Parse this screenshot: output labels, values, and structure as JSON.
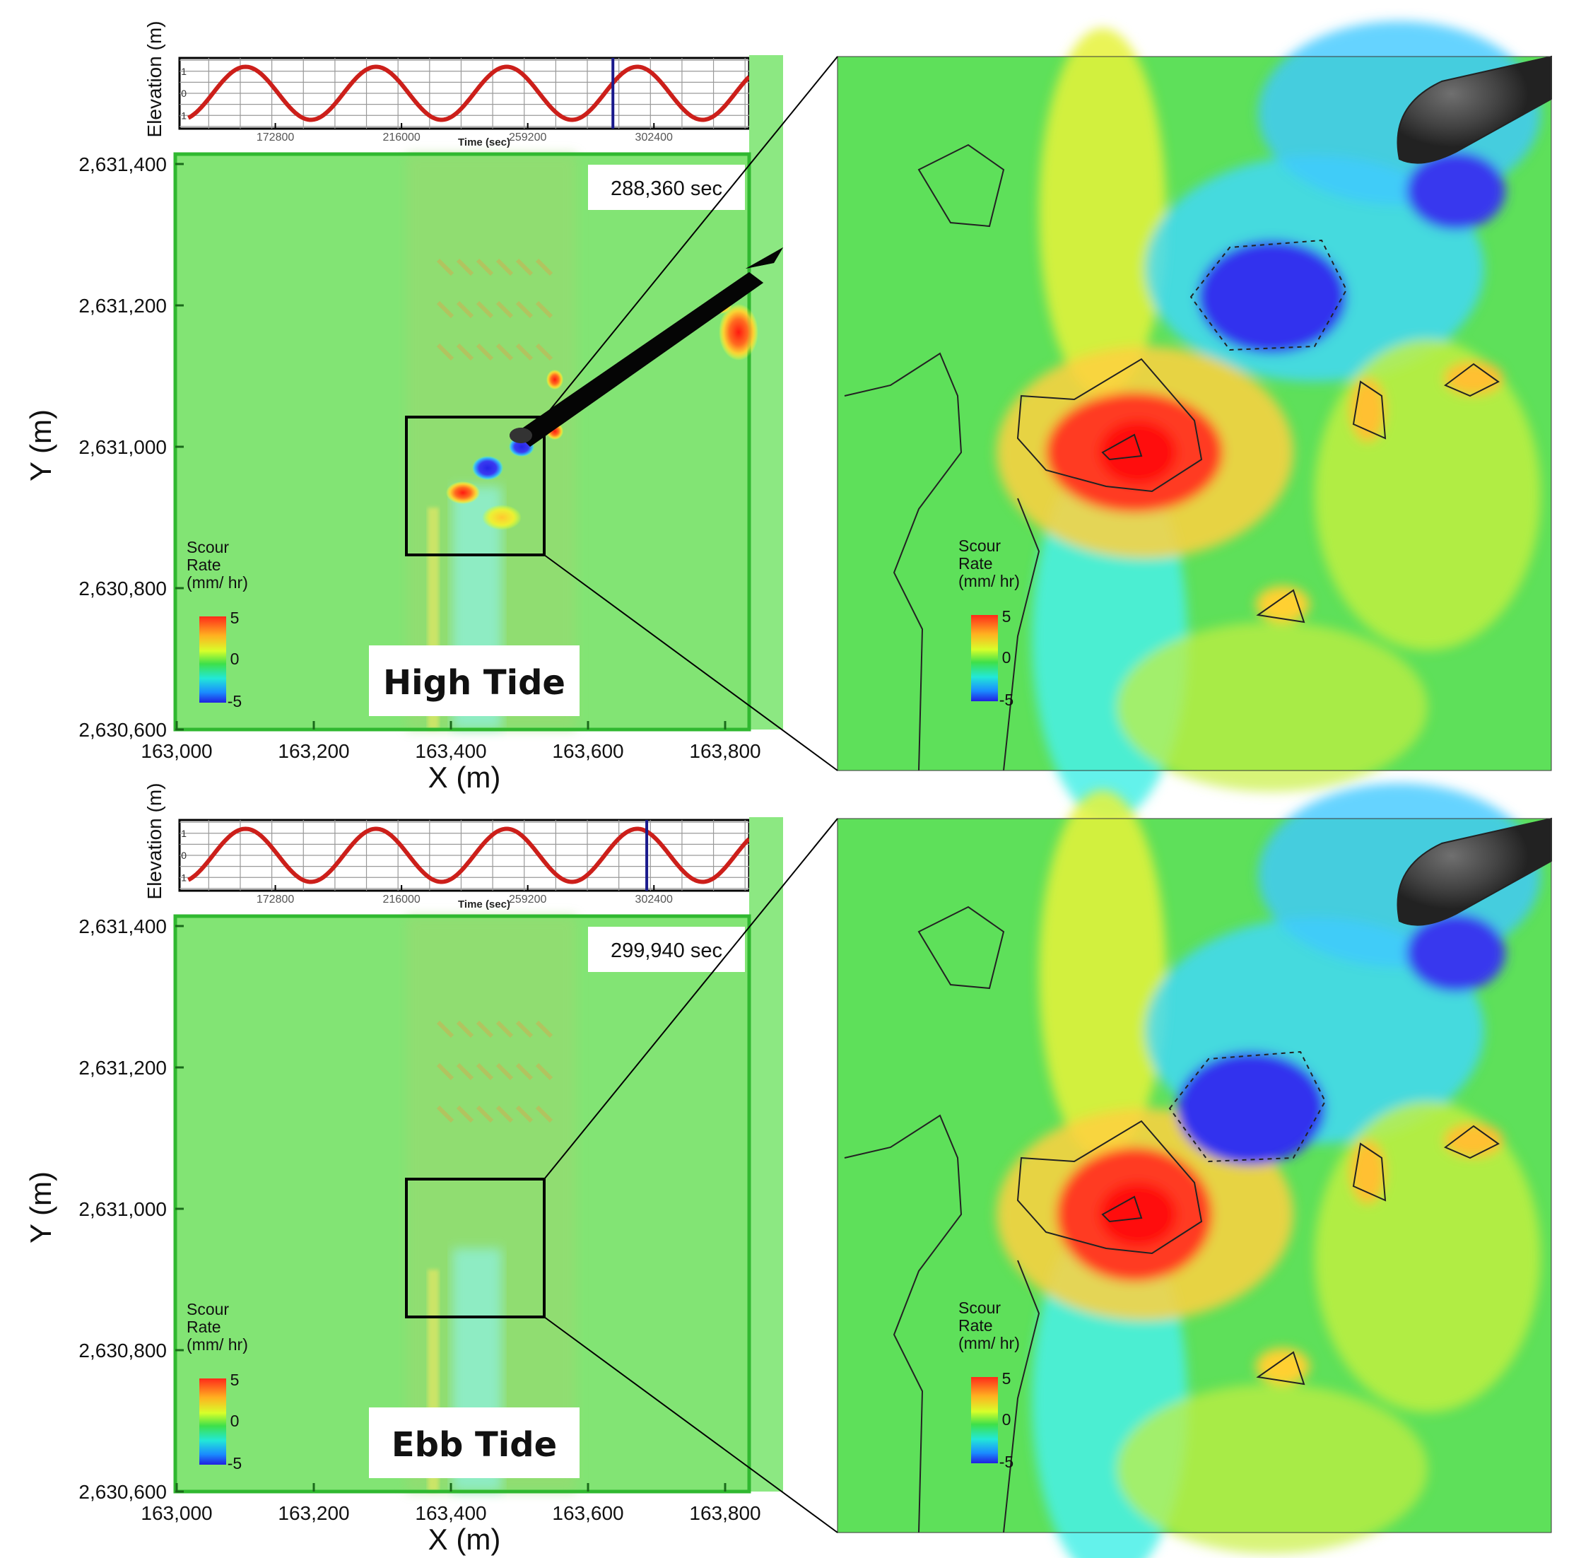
{
  "figure": {
    "panels": [
      {
        "label": "High Tide",
        "time_label": "288,360 sec",
        "marker_time": 288360,
        "variant": "high"
      },
      {
        "label": "Ebb Tide",
        "time_label": "299,940 sec",
        "marker_time": 299940,
        "variant": "ebb"
      }
    ]
  },
  "colors": {
    "tide_curve": "#cc1f1a",
    "marker": "#1a1a8c",
    "background": "#7ee26a",
    "scour_high": "#f23a22",
    "scour_low": "#3b3cf0"
  },
  "chart_data": [
    {
      "type": "line",
      "title": "",
      "xlabel": "Time (sec)",
      "ylabel": "Elevation (m)",
      "x_ticks": [
        172800,
        216000,
        259200,
        302400
      ],
      "y_ticks": [
        1,
        0,
        -1
      ],
      "xlim": [
        140000,
        335000
      ],
      "ylim": [
        -1.6,
        1.6
      ],
      "series": [
        {
          "period_sec": 44700,
          "amplitude_m": 1.2,
          "first_crest_sec": 162600
        }
      ],
      "marker_time": 288360
    },
    {
      "type": "heatmap",
      "title": "",
      "xlabel": "X (m)",
      "ylabel": "Y (m)",
      "x_ticks": [
        "163,000",
        "163,200",
        "163,400",
        "163,600",
        "163,800"
      ],
      "y_ticks": [
        "2,631,400",
        "2,631,200",
        "2,631,000",
        "2,630,800",
        "2,630,600"
      ],
      "xlim": [
        163000,
        163880
      ],
      "ylim": [
        2630600,
        2631420
      ],
      "legend": {
        "title": [
          "Scour",
          "Rate",
          "(mm/ hr)"
        ],
        "ticks": [
          "5",
          "0",
          "-5"
        ],
        "placement": "bottom-left"
      },
      "time_label": "288,360 sec",
      "label": "High Tide"
    },
    {
      "type": "line",
      "title": "",
      "xlabel": "Time (sec)",
      "ylabel": "Elevation (m)",
      "x_ticks": [
        172800,
        216000,
        259200,
        302400
      ],
      "y_ticks": [
        1,
        0,
        -1
      ],
      "xlim": [
        140000,
        335000
      ],
      "ylim": [
        -1.6,
        1.6
      ],
      "series": [
        {
          "period_sec": 44700,
          "amplitude_m": 1.2,
          "first_crest_sec": 162600
        }
      ],
      "marker_time": 299940
    },
    {
      "type": "heatmap",
      "title": "",
      "xlabel": "X (m)",
      "ylabel": "Y (m)",
      "x_ticks": [
        "163,000",
        "163,200",
        "163,400",
        "163,600",
        "163,800"
      ],
      "y_ticks": [
        "2,631,400",
        "2,631,200",
        "2,631,000",
        "2,630,800",
        "2,630,600"
      ],
      "xlim": [
        163000,
        163880
      ],
      "ylim": [
        2630600,
        2631420
      ],
      "legend": {
        "title": [
          "Scour",
          "Rate",
          "(mm/ hr)"
        ],
        "ticks": [
          "5",
          "0",
          "-5"
        ],
        "placement": "bottom-left"
      },
      "time_label": "299,940 sec",
      "label": "Ebb Tide"
    }
  ]
}
